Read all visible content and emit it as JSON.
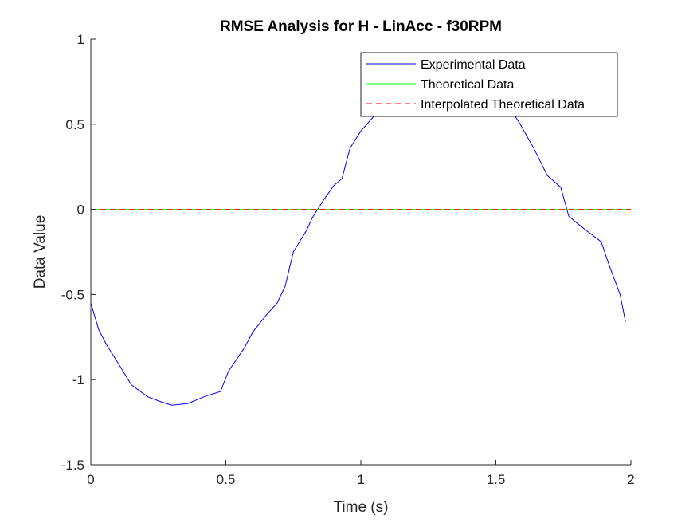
{
  "chart_data": {
    "type": "line",
    "title": "RMSE Analysis for H - LinAcc - f30RPM",
    "xlabel": "Time (s)",
    "ylabel": "Data Value",
    "xlim": [
      0,
      2
    ],
    "ylim": [
      -1.5,
      1
    ],
    "xticks": [
      0,
      0.5,
      1,
      1.5,
      2
    ],
    "xtick_labels": [
      "0",
      "0.5",
      "1",
      "1.5",
      "2"
    ],
    "yticks": [
      -1.5,
      -1,
      -0.5,
      0,
      0.5,
      1
    ],
    "ytick_labels": [
      "-1.5",
      "-1",
      "-0.5",
      "0",
      "0.5",
      "1"
    ],
    "grid": false,
    "legend_position": "top-right",
    "series": [
      {
        "name": "Experimental Data",
        "color": "#0000ff",
        "style": "solid",
        "x": [
          0,
          0.03,
          0.06,
          0.1,
          0.15,
          0.21,
          0.26,
          0.3,
          0.36,
          0.42,
          0.48,
          0.51,
          0.57,
          0.6,
          0.65,
          0.69,
          0.72,
          0.75,
          0.8,
          0.82,
          0.86,
          0.9,
          0.93,
          0.96,
          0.98,
          1.0,
          1.05,
          1.1,
          1.2,
          1.3,
          1.4,
          1.5,
          1.55,
          1.59,
          1.64,
          1.69,
          1.74,
          1.77,
          1.8,
          1.84,
          1.89,
          1.92,
          1.96,
          1.98
        ],
        "y": [
          -0.55,
          -0.71,
          -0.8,
          -0.9,
          -1.03,
          -1.1,
          -1.13,
          -1.15,
          -1.14,
          -1.1,
          -1.07,
          -0.95,
          -0.81,
          -0.72,
          -0.62,
          -0.55,
          -0.45,
          -0.25,
          -0.12,
          -0.05,
          0.05,
          0.14,
          0.18,
          0.36,
          0.41,
          0.46,
          0.55,
          0.62,
          0.7,
          0.72,
          0.72,
          0.68,
          0.6,
          0.5,
          0.36,
          0.2,
          0.13,
          -0.04,
          -0.08,
          -0.13,
          -0.19,
          -0.33,
          -0.5,
          -0.66
        ]
      },
      {
        "name": "Theoretical Data",
        "color": "#00ff00",
        "style": "solid",
        "x": [
          0,
          2
        ],
        "y": [
          0,
          0
        ]
      },
      {
        "name": "Interpolated Theoretical Data",
        "color": "#ff0000",
        "style": "dashed",
        "x": [
          0,
          2
        ],
        "y": [
          0,
          0
        ]
      }
    ]
  }
}
